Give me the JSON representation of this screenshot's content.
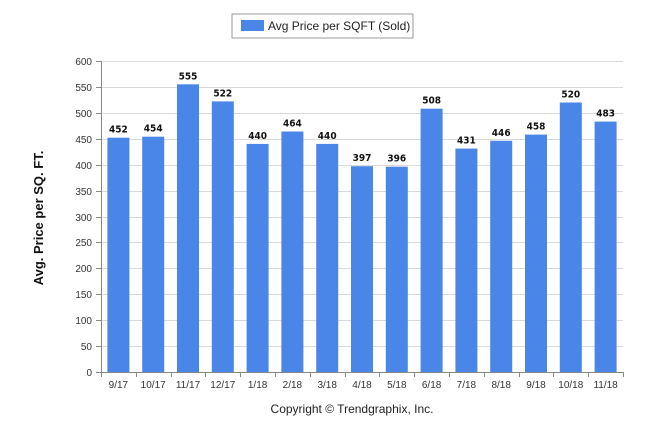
{
  "chart_data": {
    "type": "bar",
    "title": "",
    "xlabel": "",
    "ylabel": "Avg. Price per SQ. FT.",
    "ylim": [
      0,
      600
    ],
    "yticks": [
      0,
      50,
      100,
      150,
      200,
      250,
      300,
      350,
      400,
      450,
      500,
      550,
      600
    ],
    "grid": true,
    "legend_position": "top-center",
    "categories": [
      "9/17",
      "10/17",
      "11/17",
      "12/17",
      "1/18",
      "2/18",
      "3/18",
      "4/18",
      "5/18",
      "6/18",
      "7/18",
      "8/18",
      "9/18",
      "10/18",
      "11/18"
    ],
    "series": [
      {
        "name": "Avg Price per SQFT (Sold)",
        "color": "#4a86e8",
        "values": [
          452,
          454,
          555,
          522,
          440,
          464,
          440,
          397,
          396,
          508,
          431,
          446,
          458,
          520,
          483
        ]
      }
    ]
  },
  "footer": {
    "copyright": "Copyright © Trendgraphix, Inc."
  },
  "colors": {
    "bar": "#4a86e8",
    "grid": "#d9d9d9",
    "axis": "#888888"
  }
}
